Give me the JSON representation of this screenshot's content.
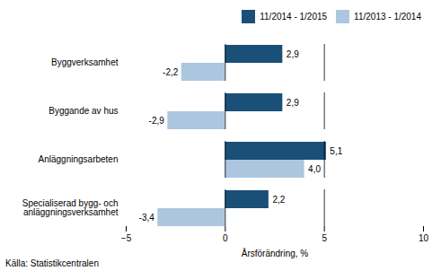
{
  "chart_data": {
    "type": "bar",
    "orientation": "horizontal",
    "categories": [
      "Byggverksamhet",
      "Byggande av hus",
      "Anläggningsarbeten",
      "Specialiserad bygg- och\nanläggningsverksamhet"
    ],
    "series": [
      {
        "name": "11/2014 - 1/2015",
        "color": "#1a4f78",
        "values": [
          2.9,
          2.9,
          5.1,
          2.2
        ],
        "value_labels": [
          "2,9",
          "2,9",
          "5,1",
          "2,2"
        ]
      },
      {
        "name": "11/2013 - 1/2014",
        "color": "#adc6e0",
        "values": [
          -2.2,
          -2.9,
          4.0,
          -3.4
        ],
        "value_labels": [
          "-2,2",
          "-2,9",
          "4,0",
          "-3,4"
        ]
      }
    ],
    "xlabel": "Årsförändring, %",
    "xlim": [
      -5,
      10
    ],
    "xticks": [
      -5,
      0,
      5,
      10
    ],
    "vlines": [
      0,
      5
    ],
    "data_labels": true,
    "legend": "upper right",
    "grid": false,
    "caption": "Källa: Statistikcentralen"
  }
}
